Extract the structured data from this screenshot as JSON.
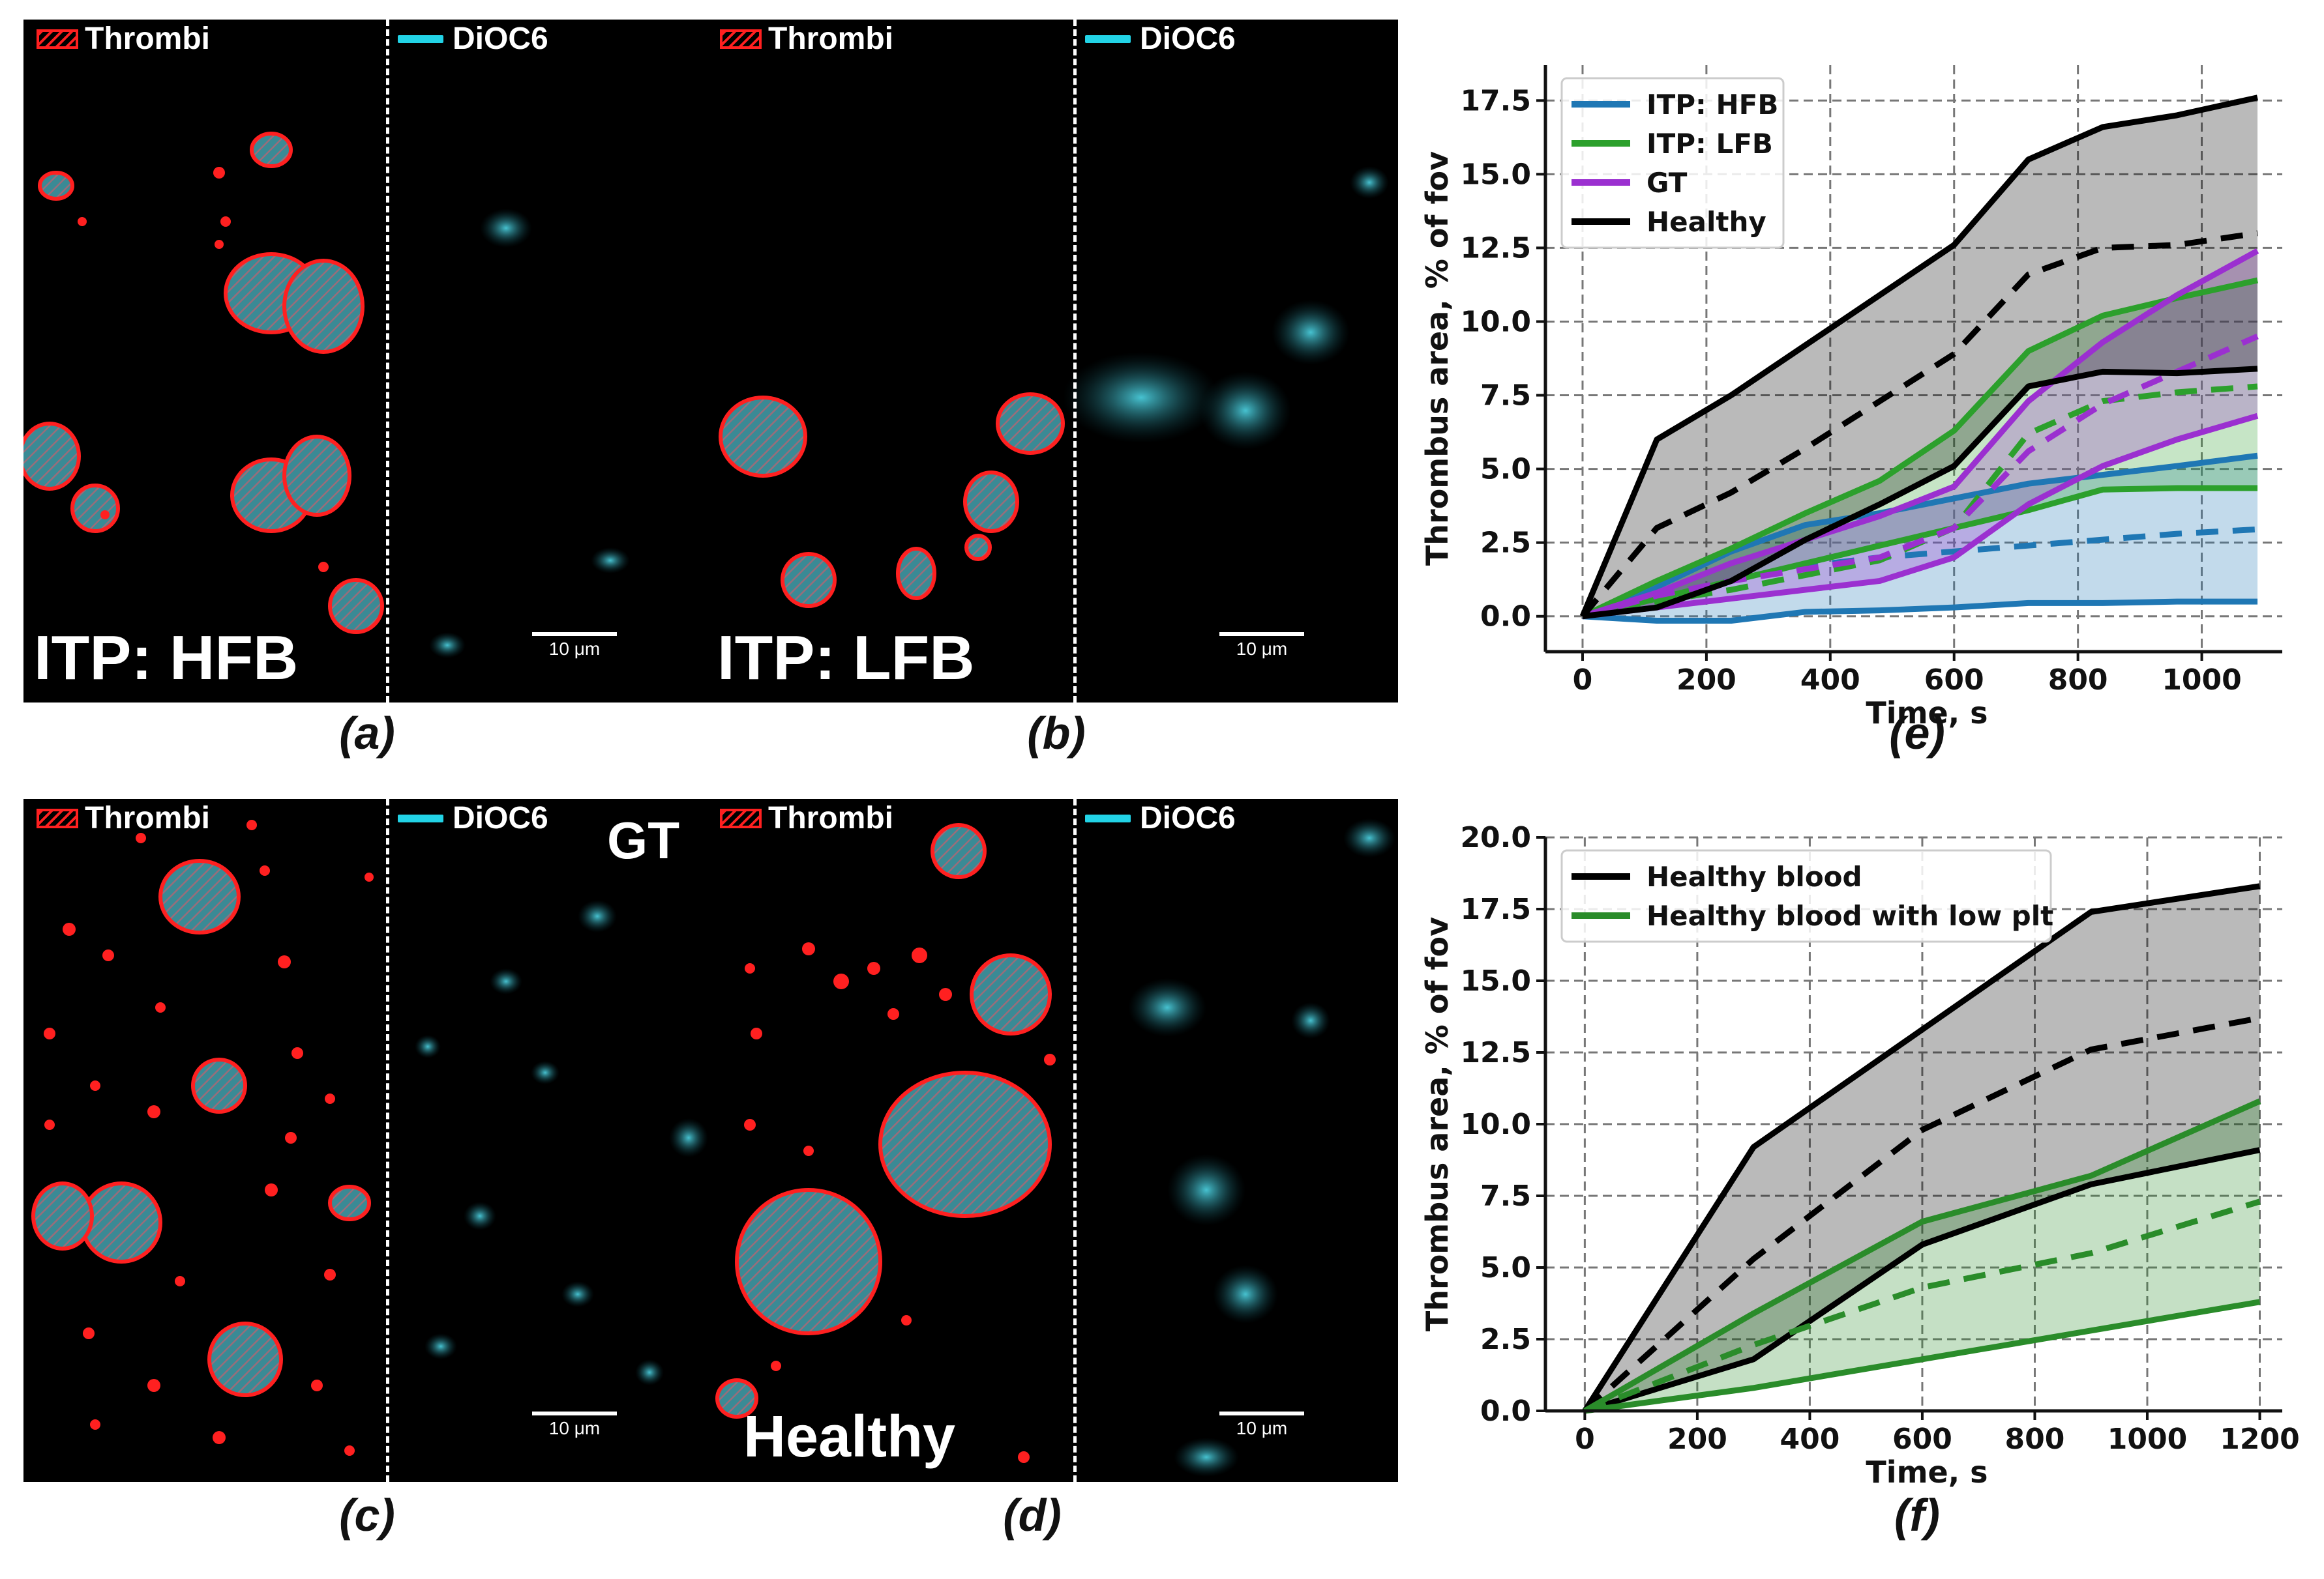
{
  "colors": {
    "thrombi": "#ff2020",
    "dioc6": "#22d3e6",
    "hfb": "#1f77b4",
    "lfb": "#2ca02c",
    "gt": "#9b30d0",
    "healthy": "#000000",
    "low_plt": "#2a8c2a"
  },
  "micro_panels": [
    {
      "id": "a",
      "label": "(a)",
      "thrombi_legend": "Thrombi",
      "dioc_legend": "DiOC6",
      "condition": "ITP: HFB",
      "scale": "10 μm"
    },
    {
      "id": "b",
      "label": "(b)",
      "thrombi_legend": "Thrombi",
      "dioc_legend": "DiOC6",
      "condition": "ITP: LFB",
      "scale": "10 μm"
    },
    {
      "id": "c",
      "label": "(c)",
      "thrombi_legend": "Thrombi",
      "dioc_legend": "DiOC6",
      "condition": "GT",
      "scale": "10 μm"
    },
    {
      "id": "d",
      "label": "(d)",
      "thrombi_legend": "Thrombi",
      "dioc_legend": "DiOC6",
      "condition": "Healthy",
      "scale": "10 μm"
    }
  ],
  "chart_data": [
    {
      "id": "e",
      "panel_label": "(e)",
      "type": "line",
      "xlabel": "Time, s",
      "ylabel": "Thrombus area, % of fov",
      "xlim": [
        -60,
        1130
      ],
      "ylim": [
        -1.2,
        18.7
      ],
      "xticks": [
        0,
        200,
        400,
        600,
        800,
        1000
      ],
      "yticks": [
        0.0,
        2.5,
        5.0,
        7.5,
        10.0,
        12.5,
        15.0,
        17.5
      ],
      "ytick_labels": [
        "0.0",
        "2.5",
        "5.0",
        "7.5",
        "10.0",
        "12.5",
        "15.0",
        "17.5"
      ],
      "grid": true,
      "legend_position": "top-left",
      "series": [
        {
          "name": "ITP: HFB",
          "color_key": "hfb",
          "x": [
            0,
            120,
            240,
            360,
            480,
            600,
            720,
            840,
            960,
            1090
          ],
          "mean": [
            0,
            0.5,
            1.2,
            1.7,
            2.0,
            2.2,
            2.4,
            2.6,
            2.8,
            2.95
          ],
          "upper": [
            0,
            1.0,
            2.2,
            3.1,
            3.5,
            4.0,
            4.5,
            4.8,
            5.1,
            5.45
          ],
          "lower": [
            0,
            -0.15,
            -0.15,
            0.15,
            0.2,
            0.3,
            0.45,
            0.45,
            0.5,
            0.5
          ]
        },
        {
          "name": "ITP: LFB",
          "color_key": "lfb",
          "x": [
            0,
            120,
            240,
            360,
            480,
            600,
            720,
            840,
            960,
            1090
          ],
          "mean": [
            0,
            0.5,
            0.9,
            1.4,
            1.9,
            3.0,
            6.2,
            7.3,
            7.6,
            7.8
          ],
          "upper": [
            0,
            1.2,
            2.3,
            3.5,
            4.6,
            6.3,
            9.0,
            10.2,
            10.8,
            11.4
          ],
          "lower": [
            0,
            0.6,
            1.2,
            1.8,
            2.4,
            3.0,
            3.6,
            4.3,
            4.35,
            4.35
          ]
        },
        {
          "name": "GT",
          "color_key": "gt",
          "x": [
            0,
            120,
            240,
            360,
            480,
            600,
            720,
            840,
            960,
            1090
          ],
          "mean": [
            0,
            0.7,
            1.2,
            1.6,
            2.0,
            3.0,
            5.6,
            7.2,
            8.3,
            9.5
          ],
          "upper": [
            0,
            0.8,
            1.8,
            2.6,
            3.4,
            4.4,
            7.3,
            9.3,
            10.9,
            12.4
          ],
          "lower": [
            0,
            0.3,
            0.6,
            0.9,
            1.2,
            2.0,
            3.8,
            5.1,
            6.0,
            6.8
          ]
        },
        {
          "name": "Healthy",
          "color_key": "healthy",
          "x": [
            0,
            120,
            240,
            360,
            480,
            600,
            720,
            840,
            960,
            1090
          ],
          "mean": [
            0,
            3.0,
            4.2,
            5.7,
            7.3,
            8.9,
            11.6,
            12.5,
            12.6,
            13.0
          ],
          "upper": [
            0,
            6.0,
            7.5,
            9.2,
            10.9,
            12.6,
            15.5,
            16.6,
            17.0,
            17.6
          ],
          "lower": [
            0,
            0.3,
            1.2,
            2.6,
            3.8,
            5.1,
            7.8,
            8.3,
            8.25,
            8.4
          ]
        }
      ]
    },
    {
      "id": "f",
      "panel_label": "(f)",
      "type": "line",
      "xlabel": "Time, s",
      "ylabel": "Thrombus area, % of fov",
      "xlim": [
        -70,
        1240
      ],
      "ylim": [
        0,
        20
      ],
      "xticks": [
        0,
        200,
        400,
        600,
        800,
        1000,
        1200
      ],
      "yticks": [
        0.0,
        2.5,
        5.0,
        7.5,
        10.0,
        12.5,
        15.0,
        17.5,
        20.0
      ],
      "ytick_labels": [
        "0.0",
        "2.5",
        "5.0",
        "7.5",
        "10.0",
        "12.5",
        "15.0",
        "17.5",
        "20.0"
      ],
      "grid": true,
      "legend_position": "top-left",
      "series": [
        {
          "name": "Healthy blood",
          "color_key": "healthy",
          "x": [
            0,
            300,
            600,
            900,
            1200
          ],
          "mean": [
            0,
            5.3,
            9.8,
            12.6,
            13.7
          ],
          "upper": [
            0,
            9.2,
            13.3,
            17.4,
            18.3
          ],
          "lower": [
            0,
            1.8,
            5.8,
            7.9,
            9.1
          ]
        },
        {
          "name": "Healthy blood with low plt",
          "color_key": "low_plt",
          "x": [
            0,
            300,
            600,
            900,
            1200
          ],
          "mean": [
            0,
            2.3,
            4.3,
            5.5,
            7.3
          ],
          "upper": [
            0,
            3.4,
            6.6,
            8.2,
            10.8
          ],
          "lower": [
            0,
            0.8,
            1.8,
            2.8,
            3.8
          ]
        }
      ]
    }
  ]
}
